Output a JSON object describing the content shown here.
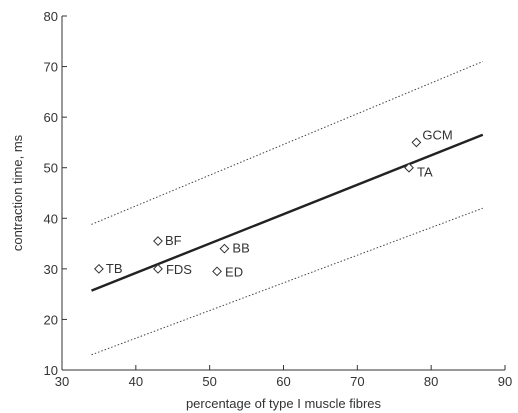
{
  "chart_data": {
    "type": "scatter",
    "title": "",
    "xlabel": "percentage of type I muscle fibres",
    "ylabel": "contraction time, ms",
    "xlim": [
      30,
      90
    ],
    "ylim": [
      10,
      80
    ],
    "xticks": [
      30,
      40,
      50,
      60,
      70,
      80,
      90
    ],
    "yticks": [
      10,
      20,
      30,
      40,
      50,
      60,
      70,
      80
    ],
    "grid": false,
    "points": [
      {
        "label": "TB",
        "x": 35,
        "y": 30
      },
      {
        "label": "BF",
        "x": 43,
        "y": 35.5
      },
      {
        "label": "FDS",
        "x": 43,
        "y": 30
      },
      {
        "label": "BB",
        "x": 52,
        "y": 34
      },
      {
        "label": "ED",
        "x": 51,
        "y": 29.5
      },
      {
        "label": "GCM",
        "x": 78,
        "y": 55
      },
      {
        "label": "TA",
        "x": 77,
        "y": 50
      }
    ],
    "fit_line": {
      "x": [
        34,
        87
      ],
      "y": [
        25.7,
        56.5
      ]
    },
    "confidence_bounds": {
      "upper": {
        "x": [
          34,
          87
        ],
        "y": [
          38.8,
          71
        ]
      },
      "lower": {
        "x": [
          34,
          87
        ],
        "y": [
          13,
          42
        ]
      }
    }
  }
}
